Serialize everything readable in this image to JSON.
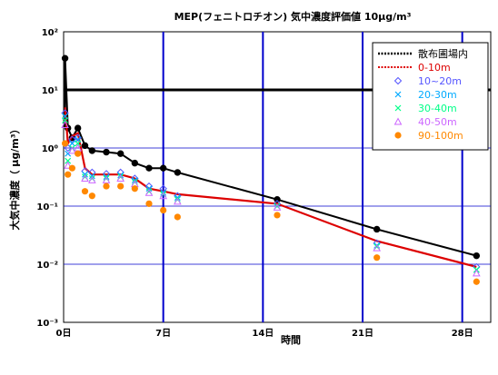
{
  "chart_data": {
    "type": "line",
    "title": "MEP(フェニトロチオン)  気中濃度評価値  10μg/m³",
    "xlabel": "時間",
    "ylabel": "大気中濃度（ μg/m³）",
    "y_scale": "log",
    "ylim": [
      0.001,
      100
    ],
    "xlim": [
      0,
      30
    ],
    "x_ticks": [
      {
        "value": 0,
        "label": "0日"
      },
      {
        "value": 7,
        "label": "7日"
      },
      {
        "value": 14,
        "label": "14日"
      },
      {
        "value": 21,
        "label": "21日"
      },
      {
        "value": 28,
        "label": "28日"
      }
    ],
    "y_ticks": [
      {
        "value": 0.001,
        "label": "10⁻³"
      },
      {
        "value": 0.01,
        "label": "10⁻²"
      },
      {
        "value": 0.1,
        "label": "10⁻¹"
      },
      {
        "value": 1,
        "label": "10⁰"
      },
      {
        "value": 10,
        "label": "10¹"
      },
      {
        "value": 100,
        "label": "10²"
      }
    ],
    "reference_value": 10,
    "grid": true,
    "legend_position": "top-right",
    "series": [
      {
        "name": "散布圃場内",
        "color": "#000000",
        "marker": "circle",
        "x": [
          0.1,
          0.3,
          0.6,
          1.0,
          1.5,
          2,
          3,
          4,
          5,
          6,
          7,
          8,
          15,
          22,
          29
        ],
        "y": [
          35,
          2.2,
          1.5,
          2.2,
          1.1,
          0.9,
          0.85,
          0.8,
          0.55,
          0.45,
          0.45,
          0.38,
          0.13,
          0.04,
          0.014
        ]
      },
      {
        "name": "0-10m",
        "color": "#dd0000",
        "marker": "none",
        "x": [
          0.1,
          0.3,
          0.6,
          1.0,
          1.5,
          2,
          3,
          4,
          5,
          6,
          7,
          8,
          15,
          22,
          29
        ],
        "y": [
          5.0,
          1.2,
          1.6,
          1.8,
          0.45,
          0.35,
          0.35,
          0.35,
          0.3,
          0.2,
          0.18,
          0.16,
          0.11,
          0.025,
          0.009
        ]
      },
      {
        "name": "10~20m",
        "color": "#5555ff",
        "marker": "diamond",
        "x": [
          0.1,
          0.3,
          0.6,
          1.0,
          1.5,
          2,
          3,
          4,
          5,
          6,
          7,
          8,
          15,
          22,
          29
        ],
        "y": [
          4.0,
          1.0,
          1.4,
          1.5,
          0.4,
          0.38,
          0.36,
          0.38,
          0.3,
          0.22,
          0.2,
          0.15,
          0.11,
          0.023,
          0.009
        ]
      },
      {
        "name": "20-30m",
        "color": "#00aaff",
        "marker": "x",
        "x": [
          0.1,
          0.3,
          0.6,
          1.0,
          1.5,
          2,
          3,
          4,
          5,
          6,
          7,
          8,
          15,
          22,
          29
        ],
        "y": [
          3.5,
          0.8,
          1.2,
          1.4,
          0.35,
          0.33,
          0.32,
          0.34,
          0.28,
          0.2,
          0.17,
          0.14,
          0.1,
          0.021,
          0.008
        ]
      },
      {
        "name": "30-40m",
        "color": "#00ff88",
        "marker": "x",
        "x": [
          0.1,
          0.3,
          0.6,
          1.0,
          1.5,
          2,
          3,
          4,
          5,
          6,
          7,
          8,
          15,
          22,
          29
        ],
        "y": [
          3.0,
          0.6,
          1.0,
          1.2,
          0.32,
          0.3,
          0.3,
          0.32,
          0.26,
          0.18,
          0.16,
          0.13,
          0.1,
          0.02,
          0.008
        ]
      },
      {
        "name": "40-50m",
        "color": "#cc66ff",
        "marker": "triangle",
        "x": [
          0.1,
          0.3,
          0.6,
          1.0,
          1.5,
          2,
          3,
          4,
          5,
          6,
          7,
          8,
          15,
          22,
          29
        ],
        "y": [
          2.5,
          0.5,
          0.9,
          1.0,
          0.3,
          0.28,
          0.28,
          0.3,
          0.24,
          0.17,
          0.15,
          0.12,
          0.095,
          0.019,
          0.007
        ]
      },
      {
        "name": "90-100m",
        "color": "#ff8800",
        "marker": "dot",
        "x": [
          0.1,
          0.3,
          0.6,
          1.0,
          1.5,
          2,
          3,
          4,
          5,
          6,
          7,
          8,
          15,
          22,
          29
        ],
        "y": [
          1.2,
          0.35,
          0.45,
          0.8,
          0.18,
          0.15,
          0.22,
          0.22,
          0.2,
          0.11,
          0.085,
          0.065,
          0.07,
          0.013,
          0.005
        ]
      }
    ]
  }
}
